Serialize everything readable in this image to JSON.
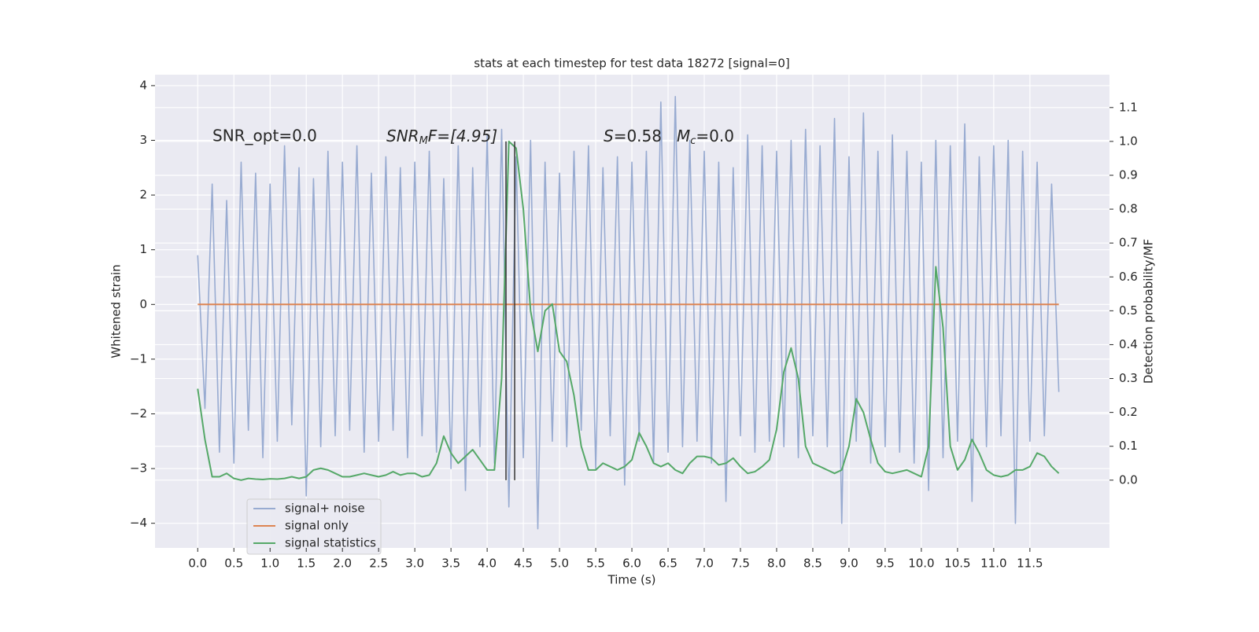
{
  "chart_data": {
    "type": "line",
    "title": "stats at each timestep for test data 18272 [signal=0]",
    "xlabel": "Time (s)",
    "ylabel": "Whitened strain",
    "y2label": "Detection probability/MF",
    "annotations": [
      "SNR_opt=0.0",
      [
        "SNR",
        "M",
        "F=[4.95]"
      ],
      [
        "S",
        "=0.58"
      ],
      [
        "M",
        "c",
        "=0.0"
      ]
    ],
    "x": [
      0.0,
      0.1,
      0.2,
      0.3,
      0.4,
      0.5,
      0.6,
      0.7,
      0.8,
      0.9,
      1.0,
      1.1,
      1.2,
      1.3,
      1.4,
      1.5,
      1.6,
      1.7,
      1.8,
      1.9,
      2.0,
      2.1,
      2.2,
      2.3,
      2.4,
      2.5,
      2.6,
      2.7,
      2.8,
      2.9,
      3.0,
      3.1,
      3.2,
      3.3,
      3.4,
      3.5,
      3.6,
      3.7,
      3.8,
      3.9,
      4.0,
      4.1,
      4.2,
      4.3,
      4.4,
      4.5,
      4.6,
      4.7,
      4.8,
      4.9,
      5.0,
      5.1,
      5.2,
      5.3,
      5.4,
      5.5,
      5.6,
      5.7,
      5.8,
      5.9,
      6.0,
      6.1,
      6.2,
      6.3,
      6.4,
      6.5,
      6.6,
      6.7,
      6.8,
      6.9,
      7.0,
      7.1,
      7.2,
      7.3,
      7.4,
      7.5,
      7.6,
      7.7,
      7.8,
      7.9,
      8.0,
      8.1,
      8.2,
      8.3,
      8.4,
      8.5,
      8.6,
      8.7,
      8.8,
      8.9,
      9.0,
      9.1,
      9.2,
      9.3,
      9.4,
      9.5,
      9.6,
      9.7,
      9.8,
      9.9,
      10.0,
      10.1,
      10.2,
      10.3,
      10.4,
      10.5,
      10.6,
      10.7,
      10.8,
      10.9,
      11.0,
      11.1,
      11.2,
      11.3,
      11.4,
      11.5,
      11.6,
      11.7,
      11.8,
      11.9
    ],
    "series": [
      {
        "name": "signal+ noise",
        "color": "#98abd1",
        "axis": "y",
        "values": [
          0.9,
          -1.9,
          2.2,
          -2.7,
          1.9,
          -2.9,
          2.6,
          -2.3,
          2.4,
          -2.8,
          2.2,
          -2.5,
          2.9,
          -2.2,
          2.5,
          -3.5,
          2.3,
          -2.6,
          2.8,
          -2.4,
          2.6,
          -2.3,
          2.9,
          -2.7,
          2.4,
          -2.5,
          2.7,
          -2.3,
          2.5,
          -2.8,
          2.6,
          -2.4,
          2.8,
          -2.7,
          2.3,
          -3.0,
          2.9,
          -3.4,
          2.5,
          -2.6,
          3.1,
          -2.9,
          3.2,
          -3.7,
          2.7,
          -2.8,
          3.0,
          -4.1,
          2.6,
          -2.5,
          2.4,
          -2.6,
          2.8,
          -2.3,
          2.9,
          -3.0,
          2.5,
          -2.4,
          2.7,
          -3.3,
          2.6,
          -2.5,
          2.8,
          -2.9,
          3.7,
          -2.7,
          3.8,
          -2.6,
          3.0,
          -2.5,
          2.8,
          -2.9,
          2.6,
          -3.6,
          2.5,
          -2.4,
          3.1,
          -2.7,
          2.9,
          -2.5,
          2.8,
          -2.6,
          3.0,
          -2.8,
          3.2,
          -2.4,
          2.9,
          -2.6,
          3.4,
          -4.0,
          2.7,
          -2.5,
          3.5,
          -2.9,
          2.8,
          -2.6,
          3.1,
          -2.7,
          2.8,
          -2.9,
          2.6,
          -3.4,
          3.0,
          -2.8,
          2.9,
          -2.5,
          3.3,
          -3.6,
          2.7,
          -2.6,
          2.9,
          -2.4,
          3.0,
          -4.0,
          2.8,
          -2.5,
          2.6,
          -2.4,
          2.2,
          -1.6
        ]
      },
      {
        "name": "signal only",
        "color": "#dd8452",
        "axis": "y",
        "values": [
          0,
          0,
          0,
          0,
          0,
          0,
          0,
          0,
          0,
          0,
          0,
          0,
          0,
          0,
          0,
          0,
          0,
          0,
          0,
          0,
          0,
          0,
          0,
          0,
          0,
          0,
          0,
          0,
          0,
          0,
          0,
          0,
          0,
          0,
          0,
          0,
          0,
          0,
          0,
          0,
          0,
          0,
          0,
          0,
          0,
          0,
          0,
          0,
          0,
          0,
          0,
          0,
          0,
          0,
          0,
          0,
          0,
          0,
          0,
          0,
          0,
          0,
          0,
          0,
          0,
          0,
          0,
          0,
          0,
          0,
          0,
          0,
          0,
          0,
          0,
          0,
          0,
          0,
          0,
          0,
          0,
          0,
          0,
          0,
          0,
          0,
          0,
          0,
          0,
          0,
          0,
          0,
          0,
          0,
          0,
          0,
          0,
          0,
          0,
          0,
          0,
          0,
          0,
          0,
          0,
          0,
          0,
          0,
          0,
          0,
          0,
          0,
          0,
          0,
          0,
          0,
          0,
          0,
          0,
          0
        ]
      },
      {
        "name": "signal statistics",
        "color": "#55a868",
        "axis": "y2",
        "values": [
          0.27,
          0.12,
          0.01,
          0.01,
          0.02,
          0.005,
          0.0,
          0.005,
          0.003,
          0.002,
          0.004,
          0.003,
          0.005,
          0.01,
          0.005,
          0.01,
          0.03,
          0.035,
          0.03,
          0.02,
          0.01,
          0.01,
          0.015,
          0.02,
          0.015,
          0.01,
          0.015,
          0.025,
          0.015,
          0.02,
          0.02,
          0.01,
          0.015,
          0.05,
          0.13,
          0.08,
          0.05,
          0.07,
          0.09,
          0.06,
          0.03,
          0.03,
          0.3,
          1.0,
          0.98,
          0.8,
          0.5,
          0.38,
          0.5,
          0.52,
          0.38,
          0.35,
          0.25,
          0.1,
          0.03,
          0.03,
          0.05,
          0.04,
          0.03,
          0.04,
          0.06,
          0.14,
          0.1,
          0.05,
          0.04,
          0.05,
          0.03,
          0.02,
          0.05,
          0.07,
          0.07,
          0.065,
          0.045,
          0.05,
          0.065,
          0.04,
          0.02,
          0.025,
          0.04,
          0.06,
          0.15,
          0.32,
          0.39,
          0.3,
          0.1,
          0.05,
          0.04,
          0.03,
          0.02,
          0.03,
          0.1,
          0.24,
          0.2,
          0.12,
          0.05,
          0.025,
          0.02,
          0.025,
          0.03,
          0.02,
          0.01,
          0.1,
          0.63,
          0.45,
          0.1,
          0.03,
          0.06,
          0.12,
          0.08,
          0.03,
          0.015,
          0.01,
          0.015,
          0.03,
          0.03,
          0.04,
          0.08,
          0.07,
          0.04,
          0.02
        ]
      }
    ],
    "vlines": {
      "x": [
        4.26,
        4.38
      ],
      "ymin": 0,
      "ymax": 1,
      "axis": "y2",
      "color": "#333333"
    },
    "xlim": [
      -0.59,
      12.6
    ],
    "ylim": [
      -4.45,
      4.2
    ],
    "y2lim": [
      -0.2,
      1.197
    ],
    "xticks": [
      {
        "value": 0,
        "label": "0.0"
      },
      0.5,
      {
        "value": 1,
        "label": "1.0"
      },
      1.5,
      {
        "value": 2,
        "label": "2.0"
      },
      2.5,
      {
        "value": 3,
        "label": "3.0"
      },
      3.5,
      {
        "value": 4,
        "label": "4.0"
      },
      4.5,
      {
        "value": 5,
        "label": "5.0"
      },
      5.5,
      {
        "value": 6,
        "label": "6.0"
      },
      6.5,
      {
        "value": 7,
        "label": "7.0"
      },
      7.5,
      {
        "value": 8,
        "label": "8.0"
      },
      8.5,
      {
        "value": 9,
        "label": "9.0"
      },
      9.5,
      {
        "value": 10,
        "label": "10.0"
      },
      10.5,
      {
        "value": 11,
        "label": "11.0"
      },
      11.5
    ],
    "yticks": [
      {
        "value": -4,
        "label": "−4"
      },
      {
        "value": -3,
        "label": "−3"
      },
      {
        "value": -2,
        "label": "−2"
      },
      {
        "value": -1,
        "label": "−1"
      },
      0,
      1,
      2,
      3,
      4
    ],
    "y2ticks": [
      {
        "value": 0,
        "label": "0.0"
      },
      0.1,
      0.2,
      0.3,
      0.4,
      0.5,
      0.6,
      0.7,
      0.8,
      0.9,
      {
        "value": 1,
        "label": "1.0"
      },
      1.1
    ],
    "grid": true,
    "legend": "lower left"
  }
}
